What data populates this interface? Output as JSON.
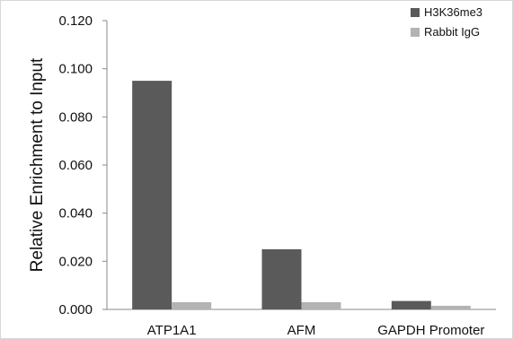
{
  "chart_data": {
    "type": "bar",
    "title": "",
    "xlabel": "",
    "ylabel": "Relative Enrichment to Input",
    "ylim": [
      0,
      0.12
    ],
    "yticks": [
      "0.000",
      "0.020",
      "0.040",
      "0.060",
      "0.080",
      "0.100",
      "0.120"
    ],
    "ytick_values": [
      0,
      0.02,
      0.04,
      0.06,
      0.08,
      0.1,
      0.12
    ],
    "categories": [
      "ATP1A1",
      "AFM",
      "GAPDH Promoter"
    ],
    "series": [
      {
        "name": "H3K36me3",
        "values": [
          0.095,
          0.025,
          0.0035
        ],
        "color": "#5a5a5a"
      },
      {
        "name": "Rabbit IgG",
        "values": [
          0.003,
          0.003,
          0.0015
        ],
        "color": "#b3b3b3"
      }
    ],
    "legend_position": "top-right",
    "grid": false
  }
}
